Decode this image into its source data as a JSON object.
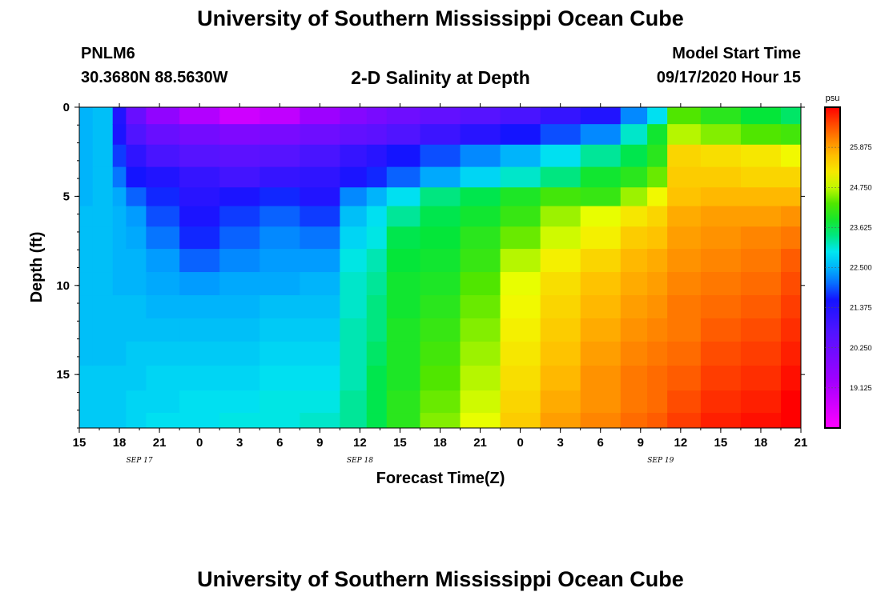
{
  "title_top": "University of Southern Mississippi Ocean Cube",
  "title_bottom": "University of Southern Mississippi Ocean Cube",
  "station": "PNLM6",
  "coordinates": "30.3680N 88.5630W",
  "plot_title": "2-D Salinity at Depth",
  "model_start_label": "Model Start Time",
  "model_start_value": "09/17/2020 Hour 15",
  "chart_data": {
    "type": "heatmap",
    "title": "2-D Salinity at Depth",
    "xlabel": "Forecast Time(Z)",
    "ylabel": "Depth (ft)",
    "x_tick_labels": [
      "15",
      "18",
      "21",
      "0",
      "3",
      "6",
      "9",
      "12",
      "15",
      "18",
      "21",
      "0",
      "3",
      "6",
      "9",
      "12",
      "15",
      "18",
      "21"
    ],
    "x_range_hours": [
      0,
      54
    ],
    "day_labels": [
      {
        "label": "SEP 17",
        "hour": 4.5
      },
      {
        "label": "SEP 18",
        "hour": 21
      },
      {
        "label": "SEP 19",
        "hour": 43.5
      }
    ],
    "y_ticks": [
      0,
      5,
      10,
      15
    ],
    "ylim": [
      0,
      18
    ],
    "colorbar": {
      "unit": "psu",
      "range": [
        18.0,
        27.0
      ],
      "labels": [
        "25.875",
        "24.750",
        "23.625",
        "22.500",
        "21.375",
        "20.250",
        "19.125"
      ]
    },
    "depth_levels": [
      0.4,
      1.5,
      2.7,
      4.0,
      5.0,
      6.1,
      7.3,
      8.6,
      9.9,
      11.2,
      12.5,
      13.8,
      15.2,
      16.6,
      17.7
    ],
    "series": [
      {
        "hour": 0,
        "values": [
          22.5,
          22.5,
          22.5,
          22.5,
          22.5,
          22.6,
          22.6,
          22.6,
          22.6,
          22.6,
          22.6,
          22.6,
          22.7,
          22.7,
          22.7
        ]
      },
      {
        "hour": 2,
        "values": [
          22.6,
          22.6,
          22.6,
          22.6,
          22.6,
          22.6,
          22.6,
          22.6,
          22.6,
          22.6,
          22.6,
          22.6,
          22.7,
          22.7,
          22.7
        ]
      },
      {
        "hour": 3,
        "values": [
          21.4,
          21.5,
          21.8,
          22.1,
          22.4,
          22.5,
          22.5,
          22.5,
          22.5,
          22.6,
          22.6,
          22.6,
          22.7,
          22.7,
          22.7
        ]
      },
      {
        "hour": 4,
        "values": [
          20.3,
          20.7,
          21.2,
          21.6,
          22.0,
          22.3,
          22.4,
          22.5,
          22.5,
          22.6,
          22.6,
          22.7,
          22.7,
          22.8,
          22.8
        ]
      },
      {
        "hour": 6,
        "values": [
          19.6,
          20.3,
          20.8,
          21.4,
          21.7,
          21.9,
          22.1,
          22.3,
          22.4,
          22.5,
          22.6,
          22.7,
          22.8,
          22.8,
          22.9
        ]
      },
      {
        "hour": 9,
        "values": [
          19.1,
          20.1,
          20.6,
          21.1,
          21.3,
          21.5,
          21.7,
          22.0,
          22.3,
          22.5,
          22.6,
          22.7,
          22.8,
          22.9,
          22.9
        ]
      },
      {
        "hour": 12,
        "values": [
          18.7,
          19.9,
          20.5,
          20.9,
          21.5,
          21.8,
          22.0,
          22.2,
          22.4,
          22.5,
          22.6,
          22.7,
          22.8,
          22.9,
          23.0
        ]
      },
      {
        "hour": 15,
        "values": [
          18.9,
          20.0,
          20.6,
          21.1,
          21.7,
          22.0,
          22.2,
          22.3,
          22.4,
          22.6,
          22.7,
          22.8,
          22.9,
          23.0,
          23.0
        ]
      },
      {
        "hour": 18,
        "values": [
          19.4,
          20.2,
          20.8,
          21.2,
          21.4,
          21.8,
          22.1,
          22.3,
          22.5,
          22.6,
          22.7,
          22.8,
          22.9,
          23.0,
          23.1
        ]
      },
      {
        "hour": 21,
        "values": [
          19.8,
          20.4,
          21.1,
          21.5,
          22.2,
          22.6,
          22.8,
          23.0,
          23.1,
          23.1,
          23.2,
          23.2,
          23.2,
          23.3,
          23.3
        ]
      },
      {
        "hour": 22,
        "values": [
          20.0,
          20.5,
          21.3,
          21.7,
          22.5,
          22.9,
          23.0,
          23.2,
          23.3,
          23.4,
          23.4,
          23.5,
          23.6,
          23.6,
          23.6
        ]
      },
      {
        "hour": 24,
        "values": [
          20.2,
          20.7,
          21.6,
          22.0,
          22.9,
          23.3,
          23.6,
          23.7,
          23.8,
          23.8,
          23.9,
          23.9,
          23.9,
          24.0,
          24.0
        ]
      },
      {
        "hour": 27,
        "values": [
          20.4,
          21.0,
          21.9,
          22.4,
          23.4,
          23.6,
          23.7,
          23.8,
          23.9,
          24.0,
          24.1,
          24.2,
          24.3,
          24.4,
          24.5
        ]
      },
      {
        "hour": 30,
        "values": [
          20.6,
          21.3,
          22.2,
          22.8,
          23.6,
          23.8,
          24.0,
          24.1,
          24.3,
          24.4,
          24.5,
          24.6,
          24.7,
          24.8,
          24.9
        ]
      },
      {
        "hour": 33,
        "values": [
          20.8,
          21.6,
          22.5,
          23.1,
          23.9,
          24.1,
          24.4,
          24.7,
          24.9,
          25.0,
          25.1,
          25.2,
          25.3,
          25.4,
          25.5
        ]
      },
      {
        "hour": 36,
        "values": [
          21.1,
          21.9,
          22.9,
          23.4,
          24.2,
          24.6,
          24.8,
          25.1,
          25.3,
          25.4,
          25.5,
          25.6,
          25.7,
          25.8,
          25.9
        ]
      },
      {
        "hour": 39,
        "values": [
          21.4,
          22.2,
          23.3,
          23.8,
          24.1,
          24.9,
          25.1,
          25.4,
          25.6,
          25.7,
          25.8,
          25.9,
          26.0,
          26.0,
          26.1
        ]
      },
      {
        "hour": 42,
        "values": [
          22.2,
          23.1,
          23.6,
          24.0,
          24.6,
          25.2,
          25.5,
          25.7,
          25.8,
          25.9,
          26.0,
          26.1,
          26.2,
          26.2,
          26.3
        ]
      },
      {
        "hour": 43,
        "values": [
          22.9,
          23.8,
          24.0,
          24.4,
          25.0,
          25.4,
          25.6,
          25.8,
          25.9,
          26.0,
          26.1,
          26.2,
          26.3,
          26.3,
          26.4
        ]
      },
      {
        "hour": 45,
        "values": [
          24.3,
          24.7,
          25.4,
          25.5,
          25.6,
          25.8,
          25.9,
          26.0,
          26.1,
          26.2,
          26.2,
          26.3,
          26.4,
          26.5,
          26.6
        ]
      },
      {
        "hour": 48,
        "values": [
          24.0,
          24.5,
          25.3,
          25.5,
          25.7,
          25.9,
          26.0,
          26.1,
          26.2,
          26.3,
          26.4,
          26.5,
          26.6,
          26.7,
          26.8
        ]
      },
      {
        "hour": 51,
        "values": [
          23.7,
          24.3,
          25.2,
          25.4,
          25.7,
          25.9,
          26.1,
          26.2,
          26.3,
          26.4,
          26.5,
          26.6,
          26.7,
          26.8,
          26.9
        ]
      },
      {
        "hour": 54,
        "values": [
          23.5,
          24.2,
          25.0,
          25.4,
          25.7,
          26.0,
          26.2,
          26.4,
          26.5,
          26.6,
          26.7,
          26.8,
          26.9,
          27.0,
          27.0
        ]
      }
    ]
  }
}
